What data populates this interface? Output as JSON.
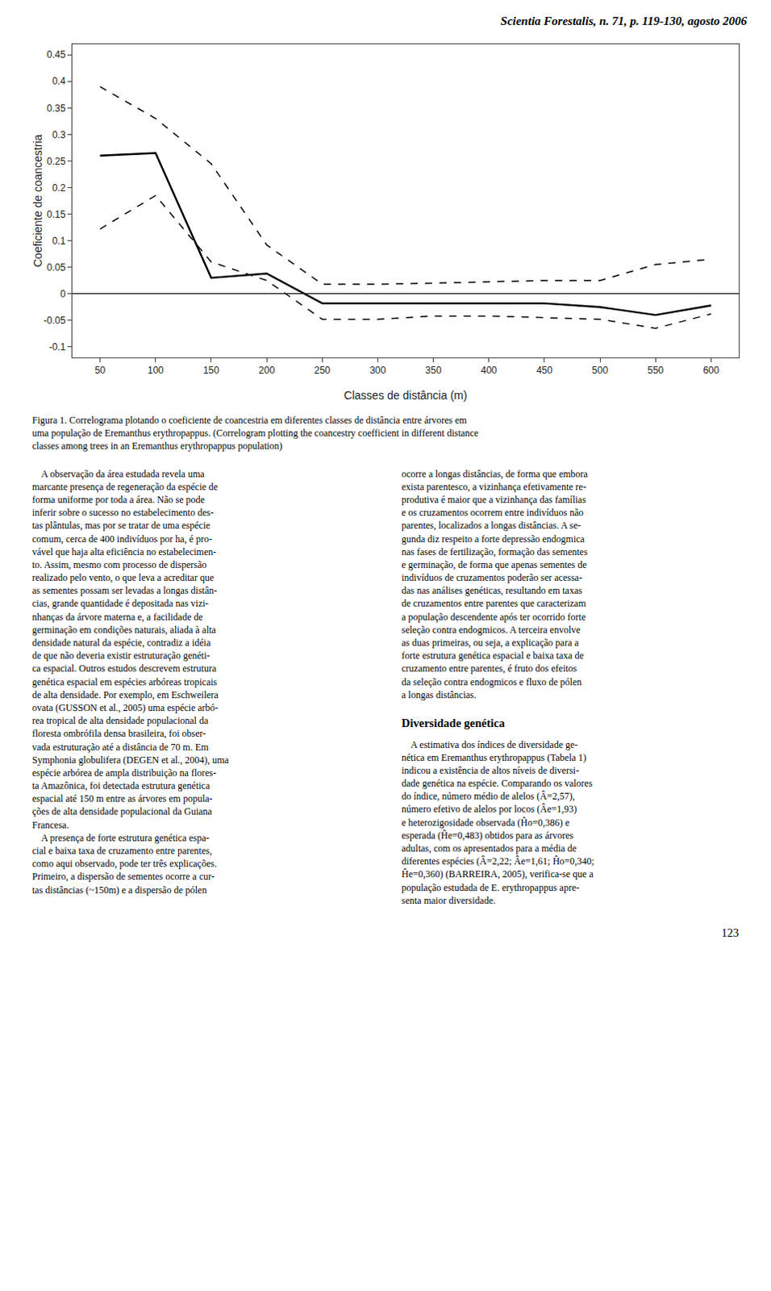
{
  "chart_data": {
    "type": "line",
    "x": [
      50,
      100,
      150,
      200,
      250,
      300,
      350,
      400,
      450,
      500,
      550,
      600
    ],
    "series": [
      {
        "values": [
          0.26,
          0.265,
          0.03,
          0.038,
          -0.018,
          -0.018,
          -0.018,
          -0.018,
          -0.018,
          -0.025,
          -0.04,
          -0.022
        ],
        "color": "#000000",
        "line_style": "solid"
      },
      {
        "values": [
          0.39,
          0.33,
          0.245,
          0.092,
          0.018,
          0.018,
          0.02,
          0.022,
          0.025,
          0.025,
          0.055,
          0.065
        ],
        "color": "#000000",
        "line_style": "dashed"
      },
      {
        "values": [
          0.122,
          0.185,
          0.06,
          0.025,
          -0.048,
          -0.048,
          -0.042,
          -0.042,
          -0.045,
          -0.048,
          -0.065,
          -0.038
        ],
        "color": "#000000",
        "line_style": "dashed"
      }
    ],
    "xlabel": "Classes de distância (m)",
    "ylabel": "Coeficiente de coancestria",
    "xlim": [
      25,
      625
    ],
    "ylim": [
      -0.12,
      0.47
    ],
    "xticks": [
      50,
      100,
      150,
      200,
      250,
      300,
      350,
      400,
      450,
      500,
      550,
      600
    ],
    "yticks": [
      -0.1,
      -0.05,
      0,
      0.05,
      0.1,
      0.15,
      0.2,
      0.25,
      0.3,
      0.35,
      0.4,
      0.45
    ],
    "grid": false,
    "annotations": [
      "Scientia Forestalis, n. 71, p. 119-130, agosto 2006",
      "Figura 1. Correlograma plotando o coeficiente de coancestria em diferentes classes de distância entre árvores em",
      "uma população de Eremanthus erythropappus. (Correlogram plotting the coancestry coefficient in different distance",
      "classes among trees in an Eremanthus erythropappus population)",
      "    A observação da área estudada revela uma\nmarcante presença de regeneração da espécie de\nforma uniforme por toda a área. Não se pode\ninferir sobre o sucesso no estabelecimento des-\ntas plântulas, mas por se tratar de uma espécie\ncomum, cerca de 400 indivíduos por ha, é pro-\nvável que haja alta eficiência no estabelecimen-\nto. Assim, mesmo com processo de dispersão\nrealizado pelo vento, o que leva a acreditar que\nas sementes possam ser levadas a longas distân-\ncias, grande quantidade é depositada nas vizi-\nnhanças da árvore materna e, a facilidade de\ngerminação em condições naturais, aliada à alta\ndensidade natural da espécie, contradiz a idéia\nde que não deveria existir estruturação genéti-\nca espacial. Outros estudos descrevem estrutura\ngenética espacial em espécies arbóreas tropicais\nde alta densidade. Por exemplo, em Eschweilera\novata (GUSSON et al., 2005) uma espécie arbó-\nrea tropical de alta densidade populacional da\nfloresta ombrófila densa brasileira, foi obser-\nvada estruturação até a distância de 70 m. Em\nSymphonia globulifera (DEGEN et al., 2004), uma\nespécie arbórea de ampla distribuição na flores-\nta Amazônica, foi detectada estrutura genética\nespacial até 150 m entre as árvores em popula-\nções de alta densidade populacional da Guiana\nFrancesa.\n    A presença de forte estrutura genética espa-\ncial e baixa taxa de cruzamento entre parentes,\ncomo aqui observado, pode ter três explicações.\nPrimeiro, a dispersão de sementes ocorre a cur-\ntas distâncias (~150m) e a dispersão de pólen",
      "ocorre a longas distâncias, de forma que embora\nexista parentesco, a vizinhança efetivamente re-\nprodutiva é maior que a vizinhança das famílias\ne os cruzamentos ocorrem entre indivíduos não\nparentes, localizados a longas distâncias. A se-\ngunda diz respeito a forte depressão endogmica\nnas fases de fertilização, formação das sementes\ne germinação, de forma que apenas sementes de\nindivíduos de cruzamentos poderão ser acessa-\ndas nas análises genéticas, resultando em taxas\nde cruzamentos entre parentes que caracterizam\na população descendente após ter ocorrido forte\nseleção contra endogmicos. A terceira envolve\nas duas primeiras, ou seja, a explicação para a\nforte estrutura genética espacial e baixa taxa de\ncruzamento entre parentes, é fruto dos efeitos\nda seleção contra endogmicos e fluxo de pólen\na longas distâncias.",
      "Diversidade genética",
      "    A estimativa dos índices de diversidade ge-\nnética em Eremanthus erythropappus (Tabela 1)\nindicou a existência de altos níveis de diversi-\ndade genética na espécie. Comparando os valores\ndo índice, número médio de alelos (Â=2,57),\nnúmero efetivo de alelos por locos (Âe=1,93)\ne heterozigosidade observada (Ĥo=0,386) e\nesperada (Ĥe=0,483) obtidos para as árvores\nadultas, com os apresentados para a média de\ndiferentes espécies (Â=2,22; Âe=1,61; Ĥo=0,340;\nĤe=0,360) (BARREIRA, 2005), verifica-se que a\npopulação estudada de E. erythropappus apre-\nsenta maior diversidade.",
      "123"
    ]
  }
}
